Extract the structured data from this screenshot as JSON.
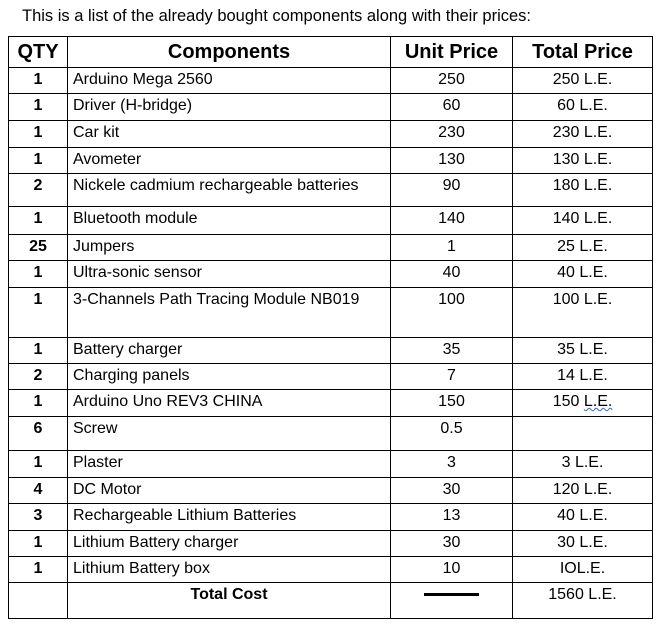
{
  "intro": "This is a list of the already bought components along with their prices:",
  "headers": {
    "qty": "QTY",
    "components": "Components",
    "unit_price": "Unit Price",
    "total_price": "Total Price"
  },
  "rows": [
    {
      "qty": "1",
      "name": "Arduino Mega 2560",
      "unit": "250",
      "total": "250 L.E."
    },
    {
      "qty": "1",
      "name": "Driver (H-bridge)",
      "unit": "60",
      "total": "60 L.E."
    },
    {
      "qty": "1",
      "name": "Car kit",
      "unit": "230",
      "total": "230 L.E."
    },
    {
      "qty": "1",
      "name": "Avometer",
      "unit": "130",
      "total": "130 L.E."
    },
    {
      "qty": "2",
      "name": "Nickele cadmium rechargeable batteries",
      "unit": "90",
      "total": "180 L.E."
    },
    {
      "qty": "1",
      "name": "Bluetooth module",
      "unit": "140",
      "total": "140 L.E."
    },
    {
      "qty": "25",
      "name": "Jumpers",
      "unit": "1",
      "total": "25 L.E."
    },
    {
      "qty": "1",
      "name": "Ultra-sonic sensor",
      "unit": "40",
      "total": "40 L.E."
    },
    {
      "qty": "1",
      "name": "3-Channels Path Tracing Module NB019",
      "unit": "100",
      "total": "100 L.E."
    },
    {
      "qty": "1",
      "name": "Battery charger",
      "unit": "35",
      "total": "35 L.E."
    },
    {
      "qty": "2",
      "name": "Charging panels",
      "unit": "7",
      "total": "14 L.E."
    },
    {
      "qty": "1",
      "name": "Arduino Uno REV3 CHINA",
      "unit": "150",
      "total_num": "150",
      "total_unit": "L.E."
    },
    {
      "qty": "6",
      "name": "Screw",
      "unit": "0.5",
      "total": ""
    },
    {
      "qty": "1",
      "name": "Plaster",
      "unit": "3",
      "total": "3 L.E."
    },
    {
      "qty": "4",
      "name": "DC Motor",
      "unit": "30",
      "total": "120 L.E."
    },
    {
      "qty": "3",
      "name": "Rechargeable Lithium Batteries",
      "unit": "13",
      "total": "40 L.E."
    },
    {
      "qty": "1",
      "name": "Lithium Battery charger",
      "unit": "30",
      "total": "30 L.E."
    },
    {
      "qty": "1",
      "name": "Lithium Battery box",
      "unit": "10",
      "total": "IOL.E."
    }
  ],
  "footer": {
    "label": "Total Cost",
    "total": "1560 L.E."
  }
}
